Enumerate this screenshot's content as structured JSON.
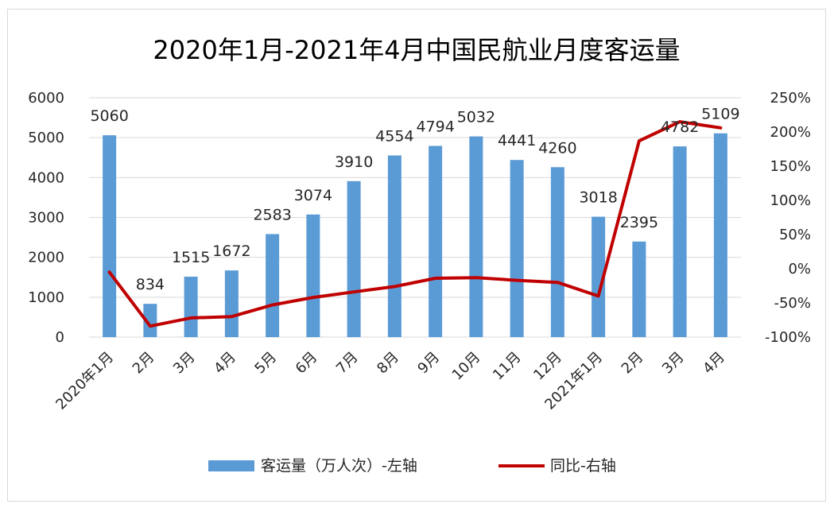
{
  "chart_data": {
    "type": "bar",
    "title": "2020年1月-2021年4月中国民航业月度客运量",
    "categories": [
      "2020年1月",
      "2月",
      "3月",
      "4月",
      "5月",
      "6月",
      "7月",
      "8月",
      "9月",
      "10月",
      "11月",
      "12月",
      "2021年1月",
      "2月",
      "3月",
      "4月"
    ],
    "series": [
      {
        "name": "客运量（万人次）-左轴",
        "type": "bar",
        "axis": "left",
        "color": "#5b9bd5",
        "values": [
          5060,
          834,
          1515,
          1672,
          2583,
          3074,
          3910,
          4554,
          4794,
          5032,
          4441,
          4260,
          3018,
          2395,
          4782,
          5109
        ],
        "labels": [
          "5060",
          "834",
          "1515",
          "1672",
          "2583",
          "3074",
          "3910",
          "4554",
          "4794",
          "5032",
          "4441",
          "4260",
          "3018",
          "2395",
          "4782",
          "5109"
        ]
      },
      {
        "name": "同比-右轴",
        "type": "line",
        "axis": "right",
        "color": "#c00000",
        "values": [
          -0.05,
          -0.84,
          -0.72,
          -0.7,
          -0.53,
          -0.42,
          -0.34,
          -0.26,
          -0.14,
          -0.13,
          -0.17,
          -0.2,
          -0.4,
          1.87,
          2.15,
          2.06
        ]
      }
    ],
    "y_left": {
      "ylim": [
        0,
        6000
      ],
      "ticks": [
        0,
        1000,
        2000,
        3000,
        4000,
        5000,
        6000
      ],
      "tick_labels": [
        "0",
        "1000",
        "2000",
        "3000",
        "4000",
        "5000",
        "6000"
      ]
    },
    "y_right": {
      "ylim": [
        -1.0,
        2.5
      ],
      "ticks": [
        -1.0,
        -0.5,
        0,
        0.5,
        1.0,
        1.5,
        2.0,
        2.5
      ],
      "tick_labels": [
        "-100%",
        "-50%",
        "0%",
        "50%",
        "100%",
        "150%",
        "200%",
        "250%"
      ]
    },
    "grid": true,
    "legend_position": "bottom"
  }
}
